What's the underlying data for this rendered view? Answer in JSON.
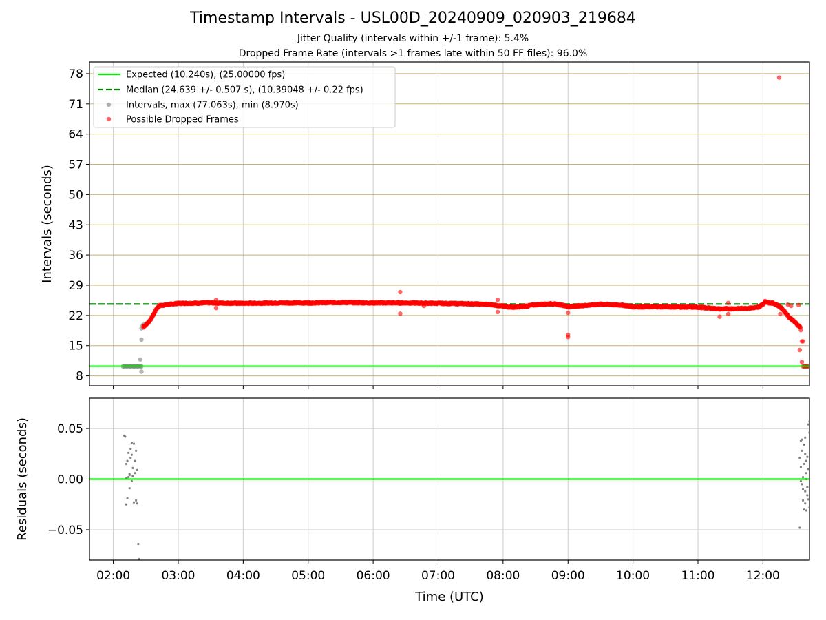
{
  "title": "Timestamp Intervals - USL00D_20240909_020903_219684",
  "subtitle_lines": [
    "Jitter Quality (intervals within +/-1 frame): 5.4%",
    "Dropped Frame Rate (intervals >1 frames late within 50 FF files): 96.0%"
  ],
  "colors": {
    "expected": "#00ee00",
    "median": "#008000",
    "intervals": "#808080",
    "dropped": "#ff0000",
    "horizontal_grid": "#c9b26a",
    "vertical_grid": "#cccccc"
  },
  "chart_data": [
    {
      "type": "scatter",
      "panel": "intervals",
      "xlabel": "",
      "ylabel": "Intervals (seconds)",
      "xlim": [
        "01:38",
        "12:43"
      ],
      "ylim": [
        5.7,
        80.7
      ],
      "yticks": [
        8,
        15,
        22,
        29,
        36,
        43,
        50,
        57,
        64,
        71,
        78
      ],
      "xticks": [
        "02:00",
        "03:00",
        "04:00",
        "05:00",
        "06:00",
        "07:00",
        "08:00",
        "09:00",
        "10:00",
        "11:00",
        "12:00"
      ],
      "grid": "horizontal gold lines, vertical grey lines",
      "legend_position": "top-left",
      "legend": [
        "Expected (10.240s), (25.00000 fps)",
        "Median (24.639 +/- 0.507 s), (10.39048 +/- 0.22 fps)",
        "Intervals, max (77.063s), min (8.970s)",
        "Possible Dropped Frames"
      ],
      "expected_y": 10.24,
      "median_y": 24.639,
      "series": [
        {
          "name": "Intervals, max (77.063s), min (8.970s)",
          "kind": "gray",
          "points": [
            [
              "02:09",
              10.2
            ],
            [
              "02:10",
              10.2
            ],
            [
              "02:11",
              10.3
            ],
            [
              "02:12",
              10.2
            ],
            [
              "02:13",
              10.2
            ],
            [
              "02:14",
              10.3
            ],
            [
              "02:15",
              10.2
            ],
            [
              "02:16",
              10.2
            ],
            [
              "02:17",
              10.3
            ],
            [
              "02:18",
              10.2
            ],
            [
              "02:19",
              10.2
            ],
            [
              "02:20",
              10.2
            ],
            [
              "02:21",
              10.3
            ],
            [
              "02:22",
              10.2
            ],
            [
              "02:23",
              10.2
            ],
            [
              "02:24",
              10.3
            ],
            [
              "02:25",
              10.2
            ],
            [
              "02:26",
              10.2
            ],
            [
              "02:26",
              8.97
            ],
            [
              "02:25",
              11.8
            ],
            [
              "02:26",
              16.4
            ],
            [
              "02:26",
              19.0
            ],
            [
              "02:27",
              19.6
            ],
            [
              "02:28",
              19.9
            ]
          ]
        },
        {
          "name": "Possible Dropped Frames",
          "kind": "red",
          "dense": [
            [
              "02:28",
              19.5
            ],
            [
              "02:30",
              19.8
            ],
            [
              "02:32",
              20.3
            ],
            [
              "02:34",
              20.9
            ],
            [
              "02:36",
              21.7
            ],
            [
              "02:38",
              22.6
            ],
            [
              "02:40",
              23.6
            ],
            [
              "02:43",
              24.3
            ],
            [
              "02:50",
              24.5
            ],
            [
              "03:00",
              24.8
            ],
            [
              "03:30",
              24.9
            ],
            [
              "04:00",
              24.8
            ],
            [
              "04:30",
              24.9
            ],
            [
              "05:00",
              24.9
            ],
            [
              "05:30",
              25.0
            ],
            [
              "06:00",
              24.9
            ],
            [
              "06:30",
              24.9
            ],
            [
              "07:00",
              24.8
            ],
            [
              "07:30",
              24.7
            ],
            [
              "07:50",
              24.5
            ],
            [
              "08:00",
              24.1
            ],
            [
              "08:10",
              23.9
            ],
            [
              "08:20",
              24.1
            ],
            [
              "08:30",
              24.5
            ],
            [
              "08:45",
              24.7
            ],
            [
              "08:55",
              24.4
            ],
            [
              "09:00",
              24.0
            ],
            [
              "09:10",
              24.2
            ],
            [
              "09:30",
              24.6
            ],
            [
              "09:50",
              24.4
            ],
            [
              "10:00",
              24.0
            ],
            [
              "10:30",
              24.0
            ],
            [
              "11:00",
              23.9
            ],
            [
              "11:20",
              23.5
            ],
            [
              "11:40",
              23.6
            ],
            [
              "11:55",
              23.8
            ],
            [
              "12:00",
              24.6
            ],
            [
              "12:02",
              25.2
            ],
            [
              "12:05",
              25.0
            ],
            [
              "12:10",
              24.8
            ],
            [
              "12:14",
              24.3
            ],
            [
              "12:18",
              23.5
            ],
            [
              "12:22",
              22.3
            ],
            [
              "12:24",
              21.6
            ],
            [
              "12:27",
              21.0
            ],
            [
              "12:30",
              20.3
            ],
            [
              "12:33",
              19.6
            ],
            [
              "12:35",
              19.2
            ]
          ],
          "points": [
            [
              "02:28",
              19.2
            ],
            [
              "03:35",
              25.6
            ],
            [
              "03:35",
              23.7
            ],
            [
              "06:25",
              27.4
            ],
            [
              "06:25",
              22.4
            ],
            [
              "06:47",
              24.2
            ],
            [
              "07:55",
              25.6
            ],
            [
              "07:55",
              22.8
            ],
            [
              "09:00",
              17.5
            ],
            [
              "09:00",
              17.0
            ],
            [
              "09:00",
              22.6
            ],
            [
              "11:07",
              23.6
            ],
            [
              "11:20",
              21.7
            ],
            [
              "11:28",
              22.3
            ],
            [
              "11:28",
              24.9
            ],
            [
              "12:15",
              77.1
            ],
            [
              "12:16",
              22.3
            ],
            [
              "12:23",
              24.5
            ],
            [
              "12:26",
              24.2
            ],
            [
              "12:33",
              24.4
            ],
            [
              "12:35",
              18.6
            ],
            [
              "12:36",
              16.0
            ],
            [
              "12:37",
              16.0
            ],
            [
              "12:34",
              14.0
            ],
            [
              "12:36",
              11.2
            ],
            [
              "12:37",
              10.2
            ],
            [
              "12:38",
              10.2
            ],
            [
              "12:39",
              10.2
            ],
            [
              "12:40",
              10.2
            ],
            [
              "12:41",
              10.2
            ],
            [
              "12:42",
              10.2
            ]
          ]
        }
      ]
    },
    {
      "type": "scatter",
      "panel": "residuals",
      "xlabel": "Time (UTC)",
      "ylabel": "Residuals (seconds)",
      "xlim": [
        "01:38",
        "12:43"
      ],
      "ylim": [
        -0.08,
        0.08
      ],
      "yticks": [
        "0.05",
        "0.00",
        "−0.05"
      ],
      "ytick_values": [
        0.05,
        0.0,
        -0.05
      ],
      "xticks": [
        "02:00",
        "03:00",
        "04:00",
        "05:00",
        "06:00",
        "07:00",
        "08:00",
        "09:00",
        "10:00",
        "11:00",
        "12:00"
      ],
      "zero_line": 0.0,
      "series": [
        {
          "name": "",
          "kind": "residual",
          "points": [
            [
              "02:10",
              0.043
            ],
            [
              "02:11",
              0.042
            ],
            [
              "02:12",
              0.015
            ],
            [
              "02:13",
              0.018
            ],
            [
              "02:14",
              0.026
            ],
            [
              "02:15",
              0.005
            ],
            [
              "02:16",
              0.021
            ],
            [
              "02:17",
              -0.002
            ],
            [
              "02:18",
              0.003
            ],
            [
              "02:19",
              0.035
            ],
            [
              "02:20",
              0.006
            ],
            [
              "02:21",
              -0.021
            ],
            [
              "02:22",
              -0.024
            ],
            [
              "02:12",
              -0.025
            ],
            [
              "02:13",
              -0.019
            ],
            [
              "02:14",
              0.002
            ],
            [
              "02:15",
              -0.009
            ],
            [
              "02:16",
              0.03
            ],
            [
              "02:17",
              0.024
            ],
            [
              "02:18",
              0.011
            ],
            [
              "02:19",
              -0.023
            ],
            [
              "02:20",
              0.018
            ],
            [
              "02:21",
              0.028
            ],
            [
              "02:22",
              0.009
            ],
            [
              "02:23",
              -0.064
            ],
            [
              "02:24",
              -0.079
            ],
            [
              "02:12",
              0.001
            ],
            [
              "02:15",
              0.004
            ],
            [
              "02:17",
              0.036
            ],
            [
              "12:34",
              -0.048
            ],
            [
              "12:34",
              0.021
            ],
            [
              "12:35",
              0.038
            ],
            [
              "12:35",
              0.012
            ],
            [
              "12:36",
              -0.005
            ],
            [
              "12:36",
              0.028
            ],
            [
              "12:37",
              0.002
            ],
            [
              "12:37",
              -0.021
            ],
            [
              "12:38",
              0.034
            ],
            [
              "12:38",
              0.015
            ],
            [
              "12:39",
              -0.012
            ],
            [
              "12:39",
              0.041
            ],
            [
              "12:40",
              -0.031
            ],
            [
              "12:40",
              0.006
            ],
            [
              "12:41",
              0.022
            ],
            [
              "12:41",
              -0.008
            ],
            [
              "12:42",
              0.054
            ],
            [
              "12:42",
              -0.02
            ],
            [
              "12:43",
              0.057
            ],
            [
              "12:43",
              -0.028
            ],
            [
              "12:38",
              -0.03
            ],
            [
              "12:39",
              0.025
            ],
            [
              "12:40",
              0.0
            ],
            [
              "12:41",
              -0.016
            ],
            [
              "12:36",
              0.039
            ],
            [
              "12:37",
              -0.01
            ],
            [
              "12:42",
              0.01
            ],
            [
              "12:43",
              0.046
            ],
            [
              "12:35",
              -0.002
            ],
            [
              "12:39",
              -0.024
            ],
            [
              "12:40",
              0.018
            ]
          ]
        }
      ]
    }
  ]
}
